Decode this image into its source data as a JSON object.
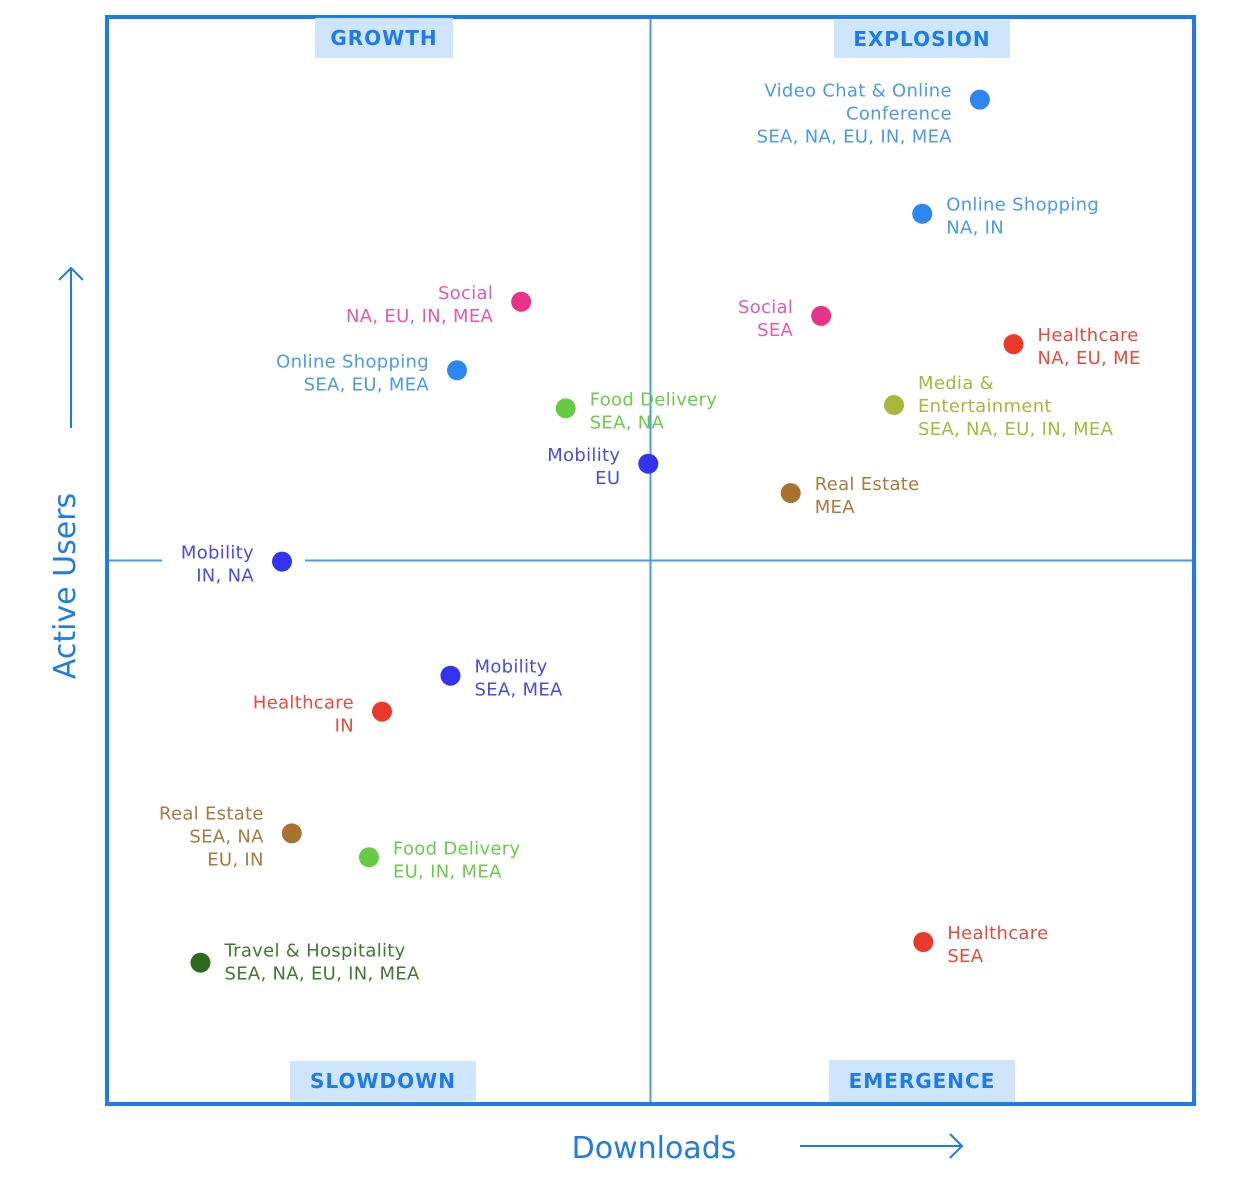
{
  "chart_data": {
    "type": "scatter",
    "title": "",
    "xlabel": "Downloads",
    "ylabel": "Active Users",
    "xlim": [
      0,
      100
    ],
    "ylim": [
      0,
      100
    ],
    "grid": false,
    "axis_divider": {
      "x": 50,
      "y": 50
    },
    "quadrants": [
      {
        "name": "growth",
        "label": "GROWTH",
        "position": "top-left"
      },
      {
        "name": "explosion",
        "label": "EXPLOSION",
        "position": "top-right"
      },
      {
        "name": "slowdown",
        "label": "SLOWDOWN",
        "position": "bottom-left"
      },
      {
        "name": "emergence",
        "label": "EMERGENCE",
        "position": "bottom-right"
      }
    ],
    "categories": [
      {
        "name": "Video Chat & Online Conference",
        "color": "#2e86f0"
      },
      {
        "name": "Online Shopping",
        "color": "#2e86f0"
      },
      {
        "name": "Social",
        "color": "#e8338c"
      },
      {
        "name": "Healthcare",
        "color": "#e8392a"
      },
      {
        "name": "Media & Entertainment",
        "color": "#a8b83a"
      },
      {
        "name": "Real Estate",
        "color": "#a8732e"
      },
      {
        "name": "Food Delivery",
        "color": "#66cc44"
      },
      {
        "name": "Mobility",
        "color": "#3333ee"
      },
      {
        "name": "Travel & Hospitality",
        "color": "#2d6a1e"
      }
    ],
    "points": [
      {
        "category": "Video Chat & Online Conference",
        "lines": [
          "Video Chat & Online",
          "Conference",
          "SEA, NA, EU, IN, MEA"
        ],
        "x": 80.3,
        "y": 92.4,
        "color": "#2e86f0",
        "label_side": "left",
        "text_color": "#4a9af0"
      },
      {
        "category": "Online Shopping",
        "lines": [
          "Online Shopping",
          "NA, IN"
        ],
        "x": 75.0,
        "y": 81.9,
        "color": "#2e86f0",
        "label_side": "right",
        "text_color": "#4a9af0"
      },
      {
        "category": "Social",
        "lines": [
          "Social",
          "SEA"
        ],
        "x": 65.7,
        "y": 72.5,
        "color": "#e8338c",
        "label_side": "left",
        "text_color": "#e85aa6"
      },
      {
        "category": "Healthcare",
        "lines": [
          "Healthcare",
          "NA, EU, ME"
        ],
        "x": 83.4,
        "y": 69.9,
        "color": "#e8392a",
        "label_side": "right",
        "text_color": "#e84a3e"
      },
      {
        "category": "Media & Entertainment",
        "lines": [
          "Media &",
          "Entertainment",
          "SEA, NA, EU, IN, MEA"
        ],
        "x": 72.4,
        "y": 64.3,
        "color": "#a8b83a",
        "label_side": "right",
        "text_color": "#a8b83a"
      },
      {
        "category": "Real Estate",
        "lines": [
          "Real Estate",
          "MEA"
        ],
        "x": 62.9,
        "y": 56.2,
        "color": "#a8732e",
        "label_side": "right",
        "text_color": "#a87a3e"
      },
      {
        "category": "Social",
        "lines": [
          "Social",
          "NA, EU, IN, MEA"
        ],
        "x": 38.1,
        "y": 73.8,
        "color": "#e8338c",
        "label_side": "left",
        "text_color": "#e85aa6"
      },
      {
        "category": "Online Shopping",
        "lines": [
          "Online Shopping",
          "SEA, EU, MEA"
        ],
        "x": 32.2,
        "y": 67.5,
        "color": "#2e86f0",
        "label_side": "left",
        "text_color": "#4a9af0"
      },
      {
        "category": "Food Delivery",
        "lines": [
          "Food Delivery",
          "SEA, NA"
        ],
        "x": 42.2,
        "y": 64.0,
        "color": "#66cc44",
        "label_side": "right",
        "text_color": "#6acc4a"
      },
      {
        "category": "Mobility",
        "lines": [
          "Mobility",
          "EU"
        ],
        "x": 49.8,
        "y": 58.9,
        "color": "#3333ee",
        "label_side": "left",
        "text_color": "#4a4ae8"
      },
      {
        "category": "Mobility",
        "lines": [
          "Mobility",
          "IN, NA"
        ],
        "x": 16.1,
        "y": 49.9,
        "color": "#3333ee",
        "label_side": "left",
        "text_color": "#4a4ae8"
      },
      {
        "category": "Mobility",
        "lines": [
          "Mobility",
          "SEA, MEA"
        ],
        "x": 31.6,
        "y": 39.4,
        "color": "#3333ee",
        "label_side": "right",
        "text_color": "#4a4ae8"
      },
      {
        "category": "Healthcare",
        "lines": [
          "Healthcare",
          "IN"
        ],
        "x": 25.3,
        "y": 36.1,
        "color": "#e8392a",
        "label_side": "left",
        "text_color": "#e84a3e"
      },
      {
        "category": "Real Estate",
        "lines": [
          "Real Estate",
          "SEA, NA",
          "EU, IN"
        ],
        "x": 17.0,
        "y": 24.9,
        "color": "#a8732e",
        "label_side": "left",
        "text_color": "#a87a3e"
      },
      {
        "category": "Food Delivery",
        "lines": [
          "Food Delivery",
          "EU, IN, MEA"
        ],
        "x": 24.1,
        "y": 22.7,
        "color": "#66cc44",
        "label_side": "right",
        "text_color": "#6acc4a"
      },
      {
        "category": "Travel & Hospitality",
        "lines": [
          "Travel & Hospitality",
          "SEA, NA, EU, IN, MEA"
        ],
        "x": 8.6,
        "y": 13.0,
        "color": "#2d6a1e",
        "label_side": "right",
        "text_color": "#3f7a30"
      },
      {
        "category": "Healthcare",
        "lines": [
          "Healthcare",
          "SEA"
        ],
        "x": 75.1,
        "y": 14.9,
        "color": "#e8392a",
        "label_side": "right",
        "text_color": "#e84a3e"
      }
    ],
    "colors": {
      "frame": "#1e7be8",
      "divider": "#4a9af0",
      "quadrant_tag_bg": "#cfe5fb",
      "quadrant_tag_text": "#1e7be8",
      "axis_title": "#1e7be8"
    }
  }
}
